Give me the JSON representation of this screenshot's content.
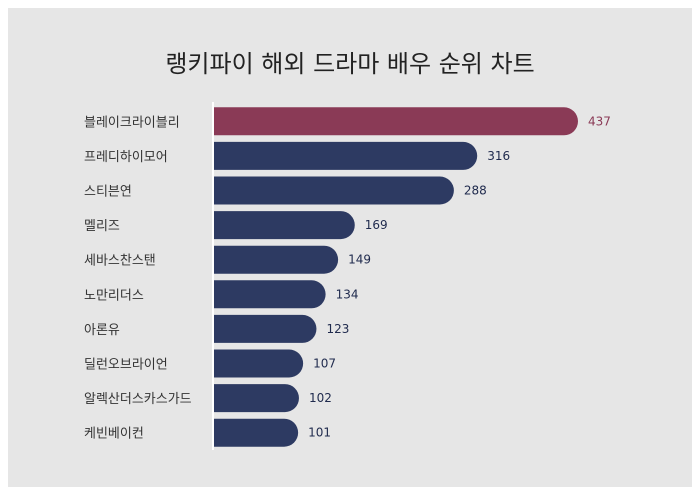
{
  "title": "랭키파이 해외 드라마 배우 순위 차트",
  "colors": {
    "background": "#e6e6e6",
    "bar": "#2d3a62",
    "highlight_bar": "#8a3a56",
    "highlight_label": "#8a3a56",
    "value_label": "#1f2a4d"
  },
  "chart_data": {
    "type": "bar",
    "orientation": "horizontal",
    "categories": [
      "블레이크라이블리",
      "프레디하이모어",
      "스티븐연",
      "멜리즈",
      "세바스찬스탠",
      "노만리더스",
      "아론유",
      "딜런오브라이언",
      "알렉산더스카스가드",
      "케빈베이컨"
    ],
    "values": [
      437,
      316,
      288,
      169,
      149,
      134,
      123,
      107,
      102,
      101
    ],
    "highlight_index": 0,
    "title": "랭키파이 해외 드라마 배우 순위 차트",
    "xlabel": "",
    "ylabel": "",
    "xlim": [
      0,
      437
    ],
    "grid": false,
    "legend": "none"
  }
}
